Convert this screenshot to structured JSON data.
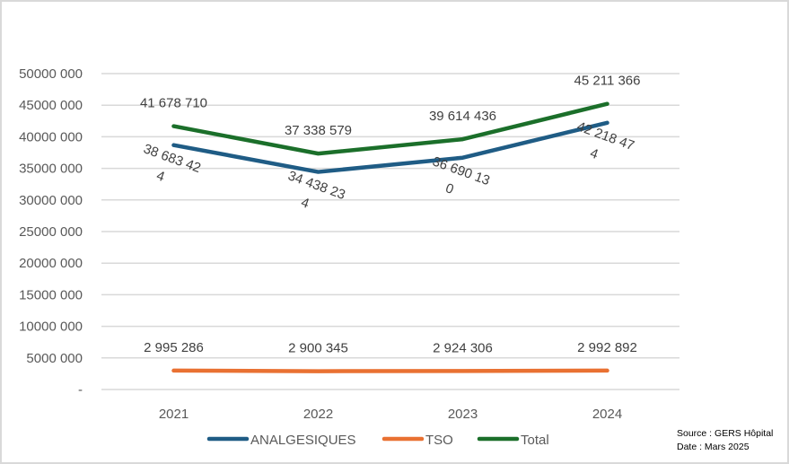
{
  "chart_data": {
    "type": "line",
    "title": "",
    "xlabel": "",
    "ylabel": "",
    "categories": [
      "2021",
      "2022",
      "2023",
      "2024"
    ],
    "ylim": [
      0,
      50000000
    ],
    "ytick_values": [
      0,
      5000000,
      10000000,
      15000000,
      20000000,
      25000000,
      30000000,
      35000000,
      40000000,
      45000000,
      50000000
    ],
    "ytick_labels": [
      "-",
      "5000 000",
      "10000 000",
      "15000 000",
      "20000 000",
      "25000 000",
      "30000 000",
      "35000 000",
      "40000 000",
      "45000 000",
      "50000 000"
    ],
    "grid": true,
    "legend_position": "bottom",
    "series": [
      {
        "name": "ANALGESIQUES",
        "color": "#1f5c85",
        "values": [
          38683424,
          34438234,
          36690130,
          42218474
        ],
        "labels": [
          [
            "38 683 42",
            "4"
          ],
          [
            "34 438 23",
            "4"
          ],
          [
            "36 690 13",
            "0"
          ],
          [
            "42 218 47",
            "4"
          ]
        ],
        "label_position": "below-rotated"
      },
      {
        "name": "TSO",
        "color": "#e97132",
        "values": [
          2995286,
          2900345,
          2924306,
          2992892
        ],
        "labels": [
          [
            "2 995 286"
          ],
          [
            "2 900 345"
          ],
          [
            "2 924 306"
          ],
          [
            "2 992 892"
          ]
        ],
        "label_position": "above"
      },
      {
        "name": "Total",
        "color": "#1b6f2a",
        "values": [
          41678710,
          37338579,
          39614436,
          45211366
        ],
        "labels": [
          [
            "41 678 710"
          ],
          [
            "37 338 579"
          ],
          [
            "39 614 436"
          ],
          [
            "45 211 366"
          ]
        ],
        "label_position": "above"
      }
    ]
  },
  "source_note": {
    "source": "Source : GERS Hôpital",
    "date": "Date : Mars 2025"
  }
}
